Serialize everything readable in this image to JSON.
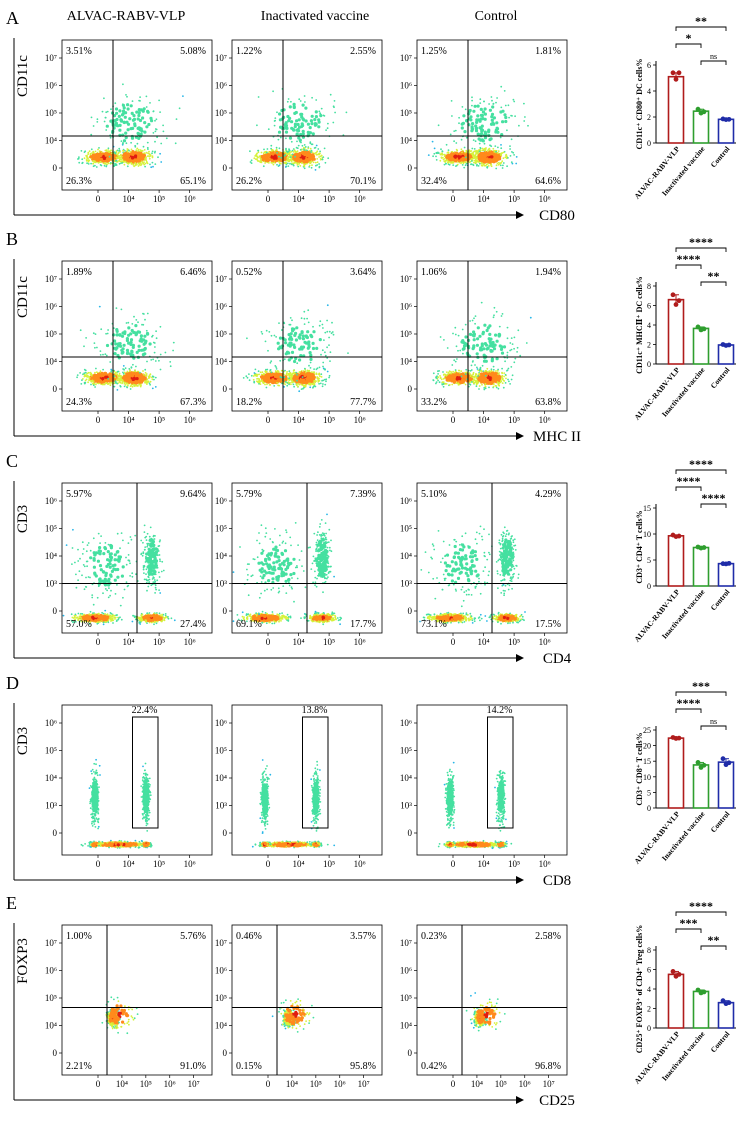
{
  "figure": {
    "column_titles": [
      "ALVAC-RABV-VLP",
      "Inactivated vaccine",
      "Control"
    ],
    "palette": {
      "bar_colors": [
        "#b01c1c",
        "#2e9e2e",
        "#1f2ca8"
      ],
      "density": [
        "#0b3fc2",
        "#27b6e8",
        "#45e0a0",
        "#d6f23a",
        "#ff8a1c",
        "#e01d10"
      ]
    }
  },
  "panels": [
    {
      "letter": "A",
      "xlabel": "CD80",
      "ylabel": "CD11c",
      "gate": "quadrant",
      "y_ticks": [
        "10⁷",
        "10⁶",
        "10⁵",
        "10⁴",
        "0"
      ],
      "x_ticks": [
        "0",
        "10⁴",
        "10⁵",
        "10⁶"
      ],
      "plots": [
        {
          "ul": "3.51%",
          "ur": "5.08%",
          "ll": "26.3%",
          "lr": "65.1%"
        },
        {
          "ul": "1.22%",
          "ur": "2.55%",
          "ll": "26.2%",
          "lr": "70.1%"
        },
        {
          "ul": "1.25%",
          "ur": "1.81%",
          "ll": "32.4%",
          "lr": "64.6%"
        }
      ]
    },
    {
      "letter": "B",
      "xlabel": "MHC II",
      "ylabel": "CD11c",
      "gate": "quadrant",
      "y_ticks": [
        "10⁷",
        "10⁶",
        "10⁵",
        "10⁴",
        "0"
      ],
      "x_ticks": [
        "0",
        "10⁴",
        "10⁵",
        "10⁶"
      ],
      "plots": [
        {
          "ul": "1.89%",
          "ur": "6.46%",
          "ll": "24.3%",
          "lr": "67.3%"
        },
        {
          "ul": "0.52%",
          "ur": "3.64%",
          "ll": "18.2%",
          "lr": "77.7%"
        },
        {
          "ul": "1.06%",
          "ur": "1.94%",
          "ll": "33.2%",
          "lr": "63.8%"
        }
      ]
    },
    {
      "letter": "C",
      "xlabel": "CD4",
      "ylabel": "CD3",
      "gate": "quadrant",
      "y_ticks": [
        "10⁶",
        "10⁵",
        "10⁴",
        "10³",
        "0"
      ],
      "x_ticks": [
        "0",
        "10⁴",
        "10⁵",
        "10⁶"
      ],
      "plots": [
        {
          "ul": "5.97%",
          "ur": "9.64%",
          "ll": "57.0%",
          "lr": "27.4%"
        },
        {
          "ul": "5.79%",
          "ur": "7.39%",
          "ll": "69.1%",
          "lr": "17.7%"
        },
        {
          "ul": "5.10%",
          "ur": "4.29%",
          "ll": "73.1%",
          "lr": "17.5%"
        }
      ]
    },
    {
      "letter": "D",
      "xlabel": "CD8",
      "ylabel": "CD3",
      "gate": "box",
      "y_ticks": [
        "10⁶",
        "10⁵",
        "10⁴",
        "10³",
        "0"
      ],
      "x_ticks": [
        "0",
        "10⁴",
        "10⁵",
        "10⁶"
      ],
      "plots": [
        {
          "box": "22.4%"
        },
        {
          "box": "13.8%"
        },
        {
          "box": "14.2%"
        }
      ]
    },
    {
      "letter": "E",
      "xlabel": "CD25",
      "ylabel": "FOXP3",
      "gate": "quadrant",
      "y_ticks": [
        "10⁷",
        "10⁶",
        "10⁵",
        "10⁴",
        "0"
      ],
      "x_ticks": [
        "0",
        "10⁴",
        "10⁵",
        "10⁶",
        "10⁷"
      ],
      "plots": [
        {
          "ul": "1.00%",
          "ur": "5.76%",
          "ll": "2.21%",
          "lr": "91.0%"
        },
        {
          "ul": "0.46%",
          "ur": "3.57%",
          "ll": "0.15%",
          "lr": "95.8%"
        },
        {
          "ul": "0.23%",
          "ur": "2.58%",
          "ll": "0.42%",
          "lr": "96.8%"
        }
      ]
    }
  ],
  "chart_data": [
    {
      "type": "bar",
      "panel": "A",
      "categories": [
        "ALVAC-RABV-VLP",
        "Inactivated vaccine",
        "Control"
      ],
      "values": [
        5.1,
        2.45,
        1.82
      ],
      "points": [
        [
          5.4,
          4.9,
          5.4
        ],
        [
          2.6,
          2.3,
          2.4
        ],
        [
          1.85,
          1.8,
          1.82
        ]
      ],
      "ylabel": "CD11c⁺ CD80⁺ DC cells%",
      "ylim": [
        0,
        6
      ],
      "yticks": [
        0,
        2,
        4,
        6
      ],
      "comparisons": [
        {
          "a": 0,
          "b": 2,
          "label": "**",
          "level": 3
        },
        {
          "a": 0,
          "b": 1,
          "label": "*",
          "level": 2
        },
        {
          "a": 1,
          "b": 2,
          "label": "ns",
          "level": 1
        }
      ]
    },
    {
      "type": "bar",
      "panel": "B",
      "categories": [
        "ALVAC-RABV-VLP",
        "Inactivated vaccine",
        "Control"
      ],
      "values": [
        6.6,
        3.65,
        1.95
      ],
      "points": [
        [
          7.1,
          6.1,
          6.5
        ],
        [
          3.8,
          3.5,
          3.6
        ],
        [
          2.0,
          1.9,
          1.95
        ]
      ],
      "ylabel": "CD11c⁺ MHCⅡ⁺ DC cells%",
      "ylim": [
        0,
        8
      ],
      "yticks": [
        0,
        2,
        4,
        6,
        8
      ],
      "comparisons": [
        {
          "a": 0,
          "b": 2,
          "label": "****",
          "level": 3
        },
        {
          "a": 0,
          "b": 1,
          "label": "****",
          "level": 2
        },
        {
          "a": 1,
          "b": 2,
          "label": "**",
          "level": 1
        }
      ]
    },
    {
      "type": "bar",
      "panel": "C",
      "categories": [
        "ALVAC-RABV-VLP",
        "Inactivated vaccine",
        "Control"
      ],
      "values": [
        9.65,
        7.4,
        4.3
      ],
      "points": [
        [
          9.8,
          9.5,
          9.6
        ],
        [
          7.5,
          7.3,
          7.4
        ],
        [
          4.3,
          4.25,
          4.35
        ]
      ],
      "ylabel": "CD3⁺ CD4⁺ T cells%",
      "ylim": [
        0,
        15
      ],
      "yticks": [
        0,
        5,
        10,
        15
      ],
      "comparisons": [
        {
          "a": 0,
          "b": 2,
          "label": "****",
          "level": 3
        },
        {
          "a": 0,
          "b": 1,
          "label": "****",
          "level": 2
        },
        {
          "a": 1,
          "b": 2,
          "label": "****",
          "level": 1
        }
      ]
    },
    {
      "type": "bar",
      "panel": "D",
      "categories": [
        "ALVAC-RABV-VLP",
        "Inactivated vaccine",
        "Control"
      ],
      "values": [
        22.4,
        13.8,
        14.7
      ],
      "points": [
        [
          22.6,
          22.3,
          22.4
        ],
        [
          14.6,
          13.0,
          13.7
        ],
        [
          15.8,
          13.9,
          14.5
        ]
      ],
      "ylabel": "CD3⁺ CD8⁺ T cells%",
      "ylim": [
        0,
        25
      ],
      "yticks": [
        0,
        5,
        10,
        15,
        20,
        25
      ],
      "comparisons": [
        {
          "a": 0,
          "b": 2,
          "label": "***",
          "level": 3
        },
        {
          "a": 0,
          "b": 1,
          "label": "****",
          "level": 2
        },
        {
          "a": 1,
          "b": 2,
          "label": "ns",
          "level": 1
        }
      ]
    },
    {
      "type": "bar",
      "panel": "E",
      "categories": [
        "ALVAC-RABV-VLP",
        "Inactivated vaccine",
        "Control"
      ],
      "values": [
        5.5,
        3.75,
        2.6
      ],
      "points": [
        [
          5.8,
          5.3,
          5.5
        ],
        [
          3.9,
          3.6,
          3.7
        ],
        [
          2.8,
          2.5,
          2.6
        ]
      ],
      "ylabel": "CD25⁺ FOXP3⁺ of CD4⁺ Treg cells%",
      "ylim": [
        0,
        8
      ],
      "yticks": [
        0,
        2,
        4,
        6,
        8
      ],
      "comparisons": [
        {
          "a": 0,
          "b": 2,
          "label": "****",
          "level": 3
        },
        {
          "a": 0,
          "b": 1,
          "label": "***",
          "level": 2
        },
        {
          "a": 1,
          "b": 2,
          "label": "**",
          "level": 1
        }
      ]
    }
  ]
}
